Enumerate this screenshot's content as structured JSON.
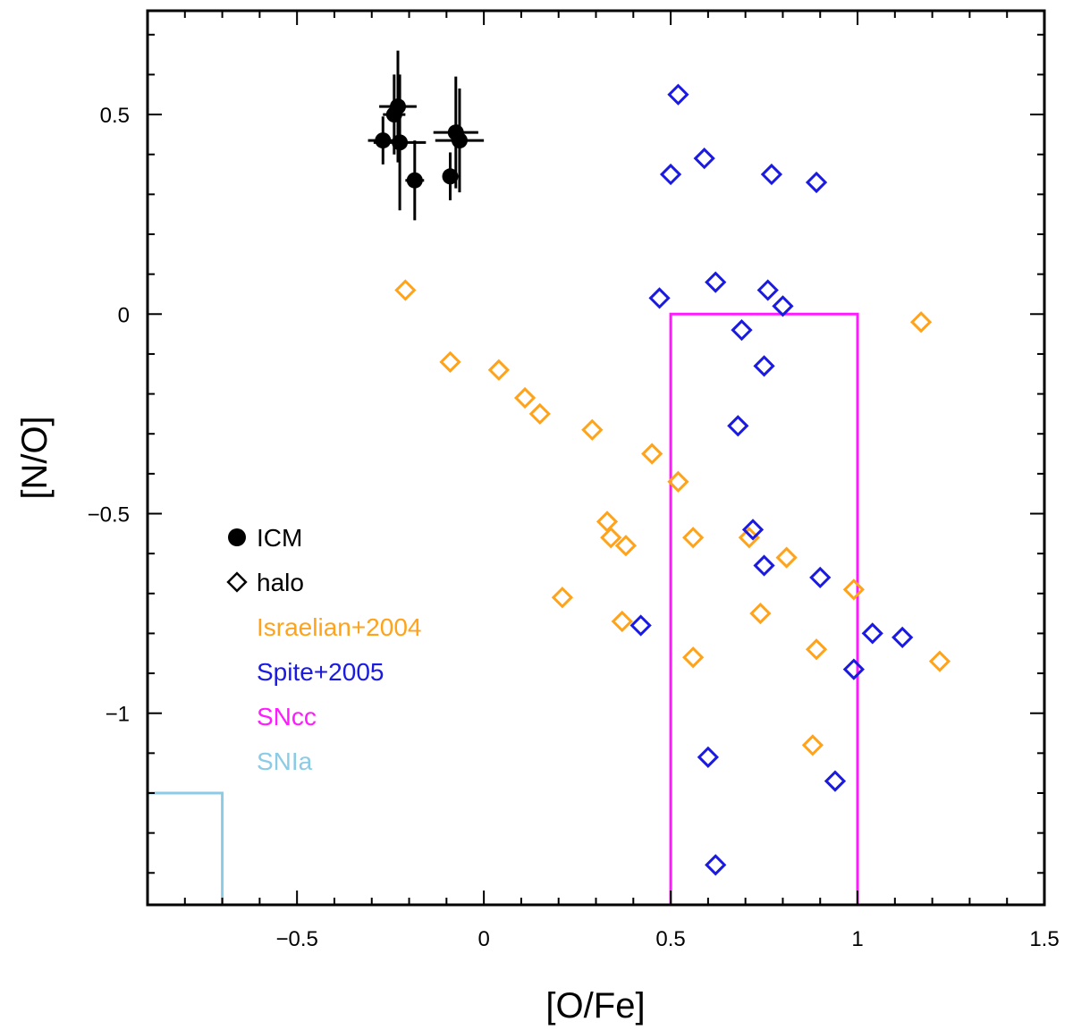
{
  "chart_data": {
    "type": "scatter",
    "title": "",
    "xlabel": "[O/Fe]",
    "ylabel": "[N/O]",
    "xlim": [
      -0.9,
      1.5
    ],
    "ylim": [
      -1.48,
      0.76
    ],
    "x_ticks": [
      -0.5,
      0,
      0.5,
      1,
      1.5
    ],
    "x_tick_labels": [
      "−0.5",
      "0",
      "0.5",
      "1",
      "1.5"
    ],
    "y_ticks": [
      -1,
      -0.5,
      0,
      0.5
    ],
    "y_tick_labels": [
      "−1",
      "−0.5",
      "0",
      "0.5"
    ],
    "x_minor_step": 0.1,
    "y_minor_step": 0.1,
    "colors": {
      "icm": "#000000",
      "israelian": "#ffa31a",
      "spite": "#1a1ae0",
      "sncc": "#ff1aff",
      "snia": "#8ccbe6"
    },
    "icm": {
      "name": "ICM",
      "points": [
        {
          "x": -0.27,
          "y": 0.435,
          "xerr": 0.04,
          "yerr": 0.06
        },
        {
          "x": -0.24,
          "y": 0.5,
          "xerr": 0.03,
          "yerr": 0.1
        },
        {
          "x": -0.23,
          "y": 0.52,
          "xerr": 0.05,
          "yerr": 0.14
        },
        {
          "x": -0.225,
          "y": 0.43,
          "xerr": 0.07,
          "yerr": 0.17
        },
        {
          "x": -0.185,
          "y": 0.335,
          "xerr": 0.025,
          "yerr": 0.1
        },
        {
          "x": -0.09,
          "y": 0.345,
          "xerr": 0.02,
          "yerr": 0.06
        },
        {
          "x": -0.075,
          "y": 0.455,
          "xerr": 0.06,
          "yerr": 0.14
        },
        {
          "x": -0.065,
          "y": 0.435,
          "xerr": 0.065,
          "yerr": 0.13
        }
      ]
    },
    "israelian": {
      "name": "Israelian+2004",
      "points": [
        {
          "x": -0.21,
          "y": 0.06
        },
        {
          "x": -0.09,
          "y": -0.12
        },
        {
          "x": 0.04,
          "y": -0.14
        },
        {
          "x": 0.11,
          "y": -0.21
        },
        {
          "x": 0.15,
          "y": -0.25
        },
        {
          "x": 0.29,
          "y": -0.29
        },
        {
          "x": 0.45,
          "y": -0.35
        },
        {
          "x": 0.52,
          "y": -0.42
        },
        {
          "x": 0.33,
          "y": -0.52
        },
        {
          "x": 0.34,
          "y": -0.56
        },
        {
          "x": 0.38,
          "y": -0.58
        },
        {
          "x": 0.56,
          "y": -0.56
        },
        {
          "x": 0.71,
          "y": -0.56
        },
        {
          "x": 0.81,
          "y": -0.61
        },
        {
          "x": 0.21,
          "y": -0.71
        },
        {
          "x": 0.37,
          "y": -0.77
        },
        {
          "x": 0.74,
          "y": -0.75
        },
        {
          "x": 0.99,
          "y": -0.69
        },
        {
          "x": 0.56,
          "y": -0.86
        },
        {
          "x": 0.89,
          "y": -0.84
        },
        {
          "x": 1.22,
          "y": -0.87
        },
        {
          "x": 0.88,
          "y": -1.08
        },
        {
          "x": 1.17,
          "y": -0.02
        }
      ]
    },
    "spite": {
      "name": "Spite+2005",
      "points": [
        {
          "x": 0.52,
          "y": 0.55
        },
        {
          "x": 0.59,
          "y": 0.39
        },
        {
          "x": 0.5,
          "y": 0.35
        },
        {
          "x": 0.77,
          "y": 0.35
        },
        {
          "x": 0.89,
          "y": 0.33
        },
        {
          "x": 0.47,
          "y": 0.04
        },
        {
          "x": 0.62,
          "y": 0.08
        },
        {
          "x": 0.76,
          "y": 0.06
        },
        {
          "x": 0.8,
          "y": 0.02
        },
        {
          "x": 0.69,
          "y": -0.04
        },
        {
          "x": 0.75,
          "y": -0.13
        },
        {
          "x": 0.68,
          "y": -0.28
        },
        {
          "x": 0.72,
          "y": -0.54
        },
        {
          "x": 0.75,
          "y": -0.63
        },
        {
          "x": 0.9,
          "y": -0.66
        },
        {
          "x": 0.42,
          "y": -0.78
        },
        {
          "x": 1.04,
          "y": -0.8
        },
        {
          "x": 1.12,
          "y": -0.81
        },
        {
          "x": 0.99,
          "y": -0.89
        },
        {
          "x": 0.6,
          "y": -1.11
        },
        {
          "x": 0.94,
          "y": -1.17
        },
        {
          "x": 0.62,
          "y": -1.38
        }
      ]
    },
    "regions": {
      "sncc": {
        "name": "SNcc",
        "x": [
          0.5,
          1.0
        ],
        "y": [
          -1.48,
          0.0
        ]
      },
      "snia": {
        "name": "SNIa",
        "x": [
          -0.9,
          -0.7
        ],
        "y": [
          -1.48,
          -1.2
        ]
      }
    },
    "legend": {
      "placement": "lower-left",
      "icm_label": "ICM",
      "halo_label": "halo",
      "israelian_label": "Israelian+2004",
      "spite_label": "Spite+2005",
      "sncc_label": "SNcc",
      "snia_label": "SNIa"
    }
  }
}
